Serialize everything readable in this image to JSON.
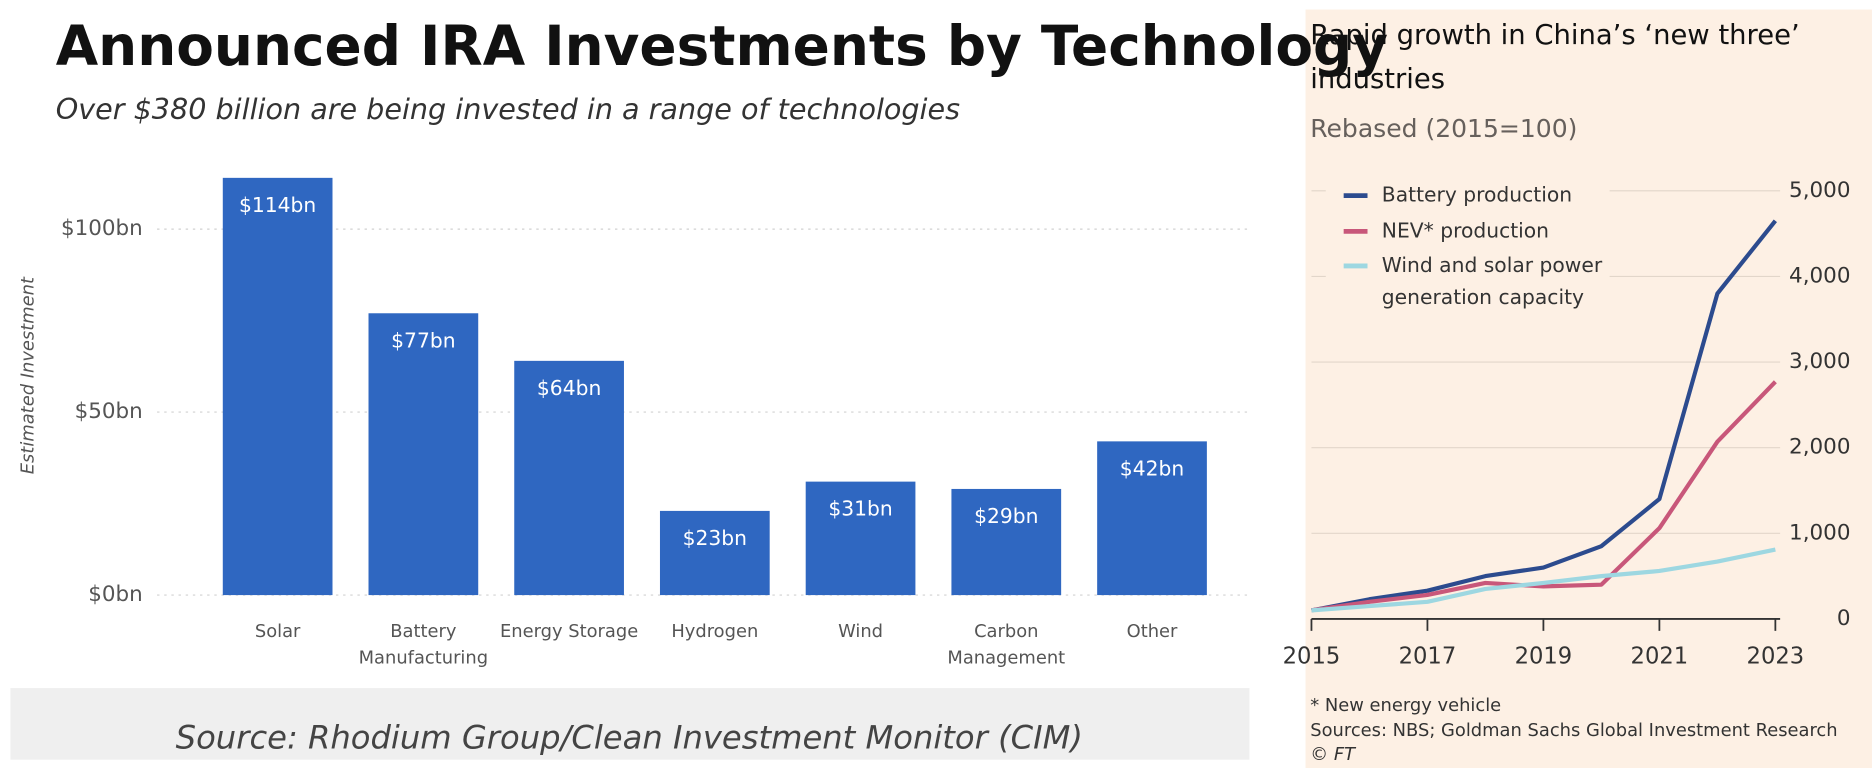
{
  "chart_data": [
    {
      "type": "bar",
      "title": "Announced IRA Investments by Technology",
      "subtitle": "Over $380 billion are being invested in a range of technologies",
      "y_label": "Estimated Investment",
      "categories": [
        "Solar",
        "Battery Manufacturing",
        "Energy Storage",
        "Hydrogen",
        "Wind",
        "Carbon Management",
        "Other"
      ],
      "values": [
        114,
        77,
        64,
        23,
        31,
        29,
        42
      ],
      "value_labels": [
        "$114bn",
        "$77bn",
        "$64bn",
        "$23bn",
        "$31bn",
        "$29bn",
        "$42bn"
      ],
      "color": "#2f67c1",
      "ylim": [
        0,
        116
      ],
      "yticks": [
        {
          "value": 0,
          "label": "$0bn"
        },
        {
          "value": 50,
          "label": "$50bn"
        },
        {
          "value": 100,
          "label": "$100bn"
        }
      ],
      "grid": true,
      "source": "Source: Rhodium Group/Clean Investment Monitor (CIM)"
    },
    {
      "type": "line",
      "title": "Rapid growth in China’s ‘new three’ industries",
      "subtitle": "Rebased (2015=100)",
      "x": [
        2015,
        2016,
        2017,
        2018,
        2019,
        2020,
        2021,
        2022,
        2023
      ],
      "series": [
        {
          "name": "Battery production",
          "color": "#2c4b8e",
          "values": [
            100,
            230,
            330,
            500,
            600,
            850,
            1400,
            3800,
            4650
          ]
        },
        {
          "name": "NEV* production",
          "color": "#c8577a",
          "values": [
            100,
            200,
            280,
            420,
            380,
            400,
            1060,
            2070,
            2770
          ]
        },
        {
          "name": "Wind and solar power generation capacity",
          "color": "#9dd7e1",
          "values": [
            100,
            150,
            200,
            350,
            420,
            500,
            560,
            670,
            810
          ]
        }
      ],
      "xlim": [
        2015,
        2023
      ],
      "xticks": [
        2015,
        2017,
        2019,
        2021,
        2023
      ],
      "ylim": [
        0,
        5000
      ],
      "yticks": [
        0,
        {
          "value": 1000,
          "label": "1,000"
        },
        {
          "value": 2000,
          "label": "2,000"
        },
        {
          "value": 3000,
          "label": "3,000"
        },
        {
          "value": 4000,
          "label": "4,000"
        },
        {
          "value": 5000,
          "label": "5,000"
        }
      ],
      "grid": true,
      "legend": "top-left",
      "note": "* New energy vehicle",
      "source": "Sources: NBS; Goldman Sachs Global Investment Research",
      "credit": "© FT"
    }
  ]
}
